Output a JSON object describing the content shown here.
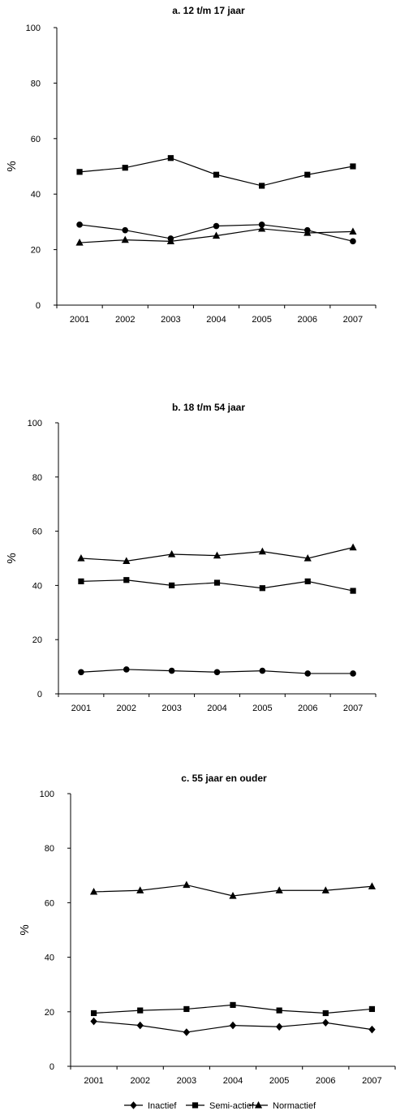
{
  "chart_data": [
    {
      "type": "line",
      "title": "a. 12 t/m 17 jaar",
      "ylabel": "%",
      "ylim": [
        0,
        100
      ],
      "yticks": [
        0,
        20,
        40,
        60,
        80,
        100
      ],
      "categories": [
        "2001",
        "2002",
        "2003",
        "2004",
        "2005",
        "2006",
        "2007"
      ],
      "grid": false,
      "series": [
        {
          "name": "Inactief",
          "marker": "circle",
          "values": [
            29,
            27,
            24,
            28.5,
            29,
            27,
            23
          ]
        },
        {
          "name": "Semi-actief",
          "marker": "square",
          "values": [
            48,
            49.5,
            53,
            47,
            43,
            47,
            50
          ]
        },
        {
          "name": "Normactief",
          "marker": "triangle",
          "values": [
            22.5,
            23.5,
            23,
            25,
            27.5,
            26,
            26.5
          ]
        }
      ]
    },
    {
      "type": "line",
      "title": "b. 18 t/m 54 jaar",
      "ylabel": "%",
      "ylim": [
        0,
        100
      ],
      "yticks": [
        0,
        20,
        40,
        60,
        80,
        100
      ],
      "categories": [
        "2001",
        "2002",
        "2003",
        "2004",
        "2005",
        "2006",
        "2007"
      ],
      "grid": false,
      "series": [
        {
          "name": "Inactief",
          "marker": "circle",
          "values": [
            8,
            9,
            8.5,
            8,
            8.5,
            7.5,
            7.5
          ]
        },
        {
          "name": "Semi-actief",
          "marker": "square",
          "values": [
            41.5,
            42,
            40,
            41,
            39,
            41.5,
            38
          ]
        },
        {
          "name": "Normactief",
          "marker": "triangle",
          "values": [
            50,
            49,
            51.5,
            51,
            52.5,
            50,
            54
          ]
        }
      ]
    },
    {
      "type": "line",
      "title": "c. 55 jaar en ouder",
      "ylabel": "%",
      "ylim": [
        0,
        100
      ],
      "yticks": [
        0,
        20,
        40,
        60,
        80,
        100
      ],
      "categories": [
        "2001",
        "2002",
        "2003",
        "2004",
        "2005",
        "2006",
        "2007"
      ],
      "grid": false,
      "series": [
        {
          "name": "Inactief",
          "marker": "diamond",
          "values": [
            16.5,
            15,
            12.5,
            15,
            14.5,
            16,
            13.5
          ]
        },
        {
          "name": "Semi-actief",
          "marker": "square",
          "values": [
            19.5,
            20.5,
            21,
            22.5,
            20.5,
            19.5,
            21
          ]
        },
        {
          "name": "Normactief",
          "marker": "triangle",
          "values": [
            64,
            64.5,
            66.5,
            62.5,
            64.5,
            64.5,
            66
          ]
        }
      ]
    }
  ],
  "legend": {
    "position": "bottom",
    "items": [
      {
        "label": "Inactief",
        "marker": "diamond"
      },
      {
        "label": "Semi-actief",
        "marker": "square"
      },
      {
        "label": "Normactief",
        "marker": "triangle"
      }
    ]
  }
}
